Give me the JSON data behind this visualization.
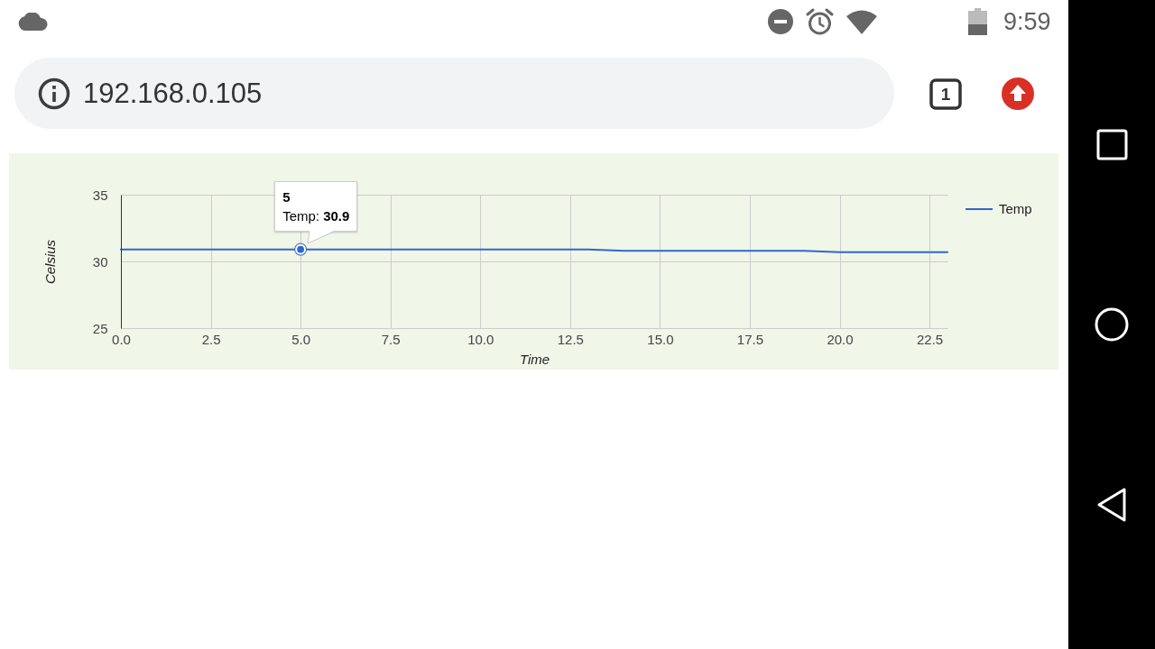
{
  "chart_data": {
    "type": "line",
    "xlabel": "Time",
    "ylabel": "Celsius",
    "x": [
      0,
      1,
      2,
      3,
      4,
      5,
      6,
      7,
      8,
      9,
      10,
      11,
      12,
      13,
      14,
      15,
      16,
      17,
      18,
      19,
      20,
      21,
      22,
      23
    ],
    "series": [
      {
        "name": "Temp",
        "color": "#3366cc",
        "values": [
          30.9,
          30.9,
          30.9,
          30.9,
          30.9,
          30.9,
          30.9,
          30.9,
          30.9,
          30.9,
          30.9,
          30.9,
          30.9,
          30.9,
          30.8,
          30.8,
          30.8,
          30.8,
          30.8,
          30.8,
          30.7,
          30.7,
          30.7,
          30.7
        ]
      }
    ],
    "xlim": [
      0,
      23
    ],
    "ylim": [
      25,
      35
    ],
    "xticks": [
      {
        "value": 0,
        "label": "0.0"
      },
      2.5,
      {
        "value": 5,
        "label": "5.0"
      },
      7.5,
      {
        "value": 10,
        "label": "10.0"
      },
      12.5,
      {
        "value": 15,
        "label": "15.0"
      },
      17.5,
      {
        "value": 20,
        "label": "20.0"
      },
      22.5
    ],
    "yticks": [
      25,
      30,
      35
    ],
    "grid": true,
    "legend": "top right",
    "annotations": [
      {
        "text": "5\nTemp: 30.9",
        "x": 5,
        "y": 30.9
      },
      "9:59",
      "192.168.0.105",
      "1"
    ]
  }
}
